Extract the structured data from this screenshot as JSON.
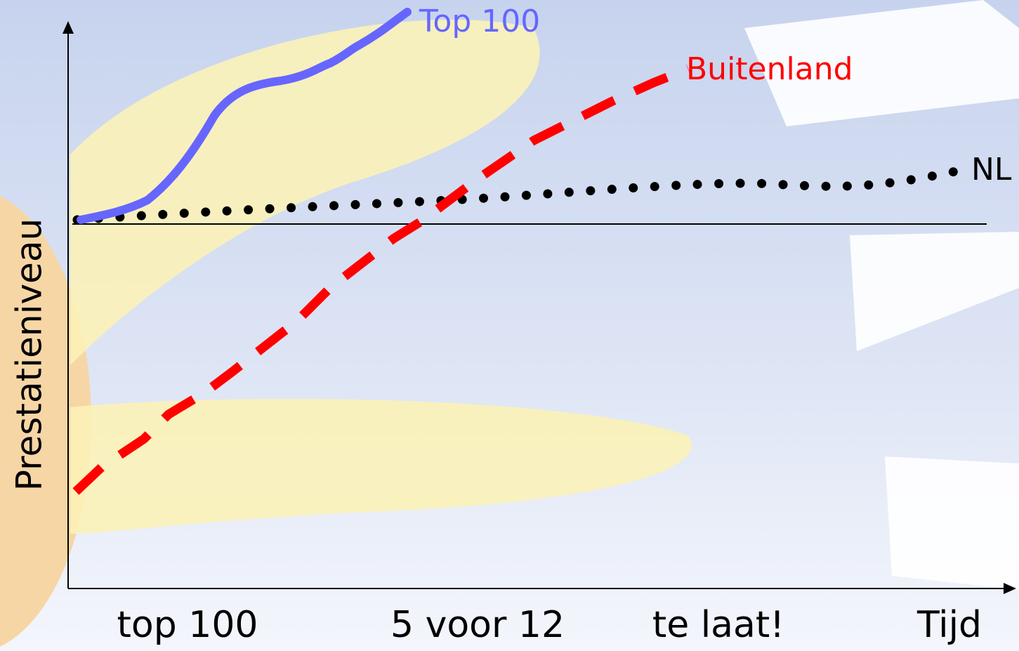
{
  "y_axis_label": "Prestatieniveau",
  "lines": [
    {
      "label": "Top 100"
    },
    {
      "label": "Buitenland"
    },
    {
      "label": "NL"
    }
  ],
  "x_labels": [
    "top 100",
    "5 voor 12",
    "te laat!",
    "Tijd"
  ]
}
